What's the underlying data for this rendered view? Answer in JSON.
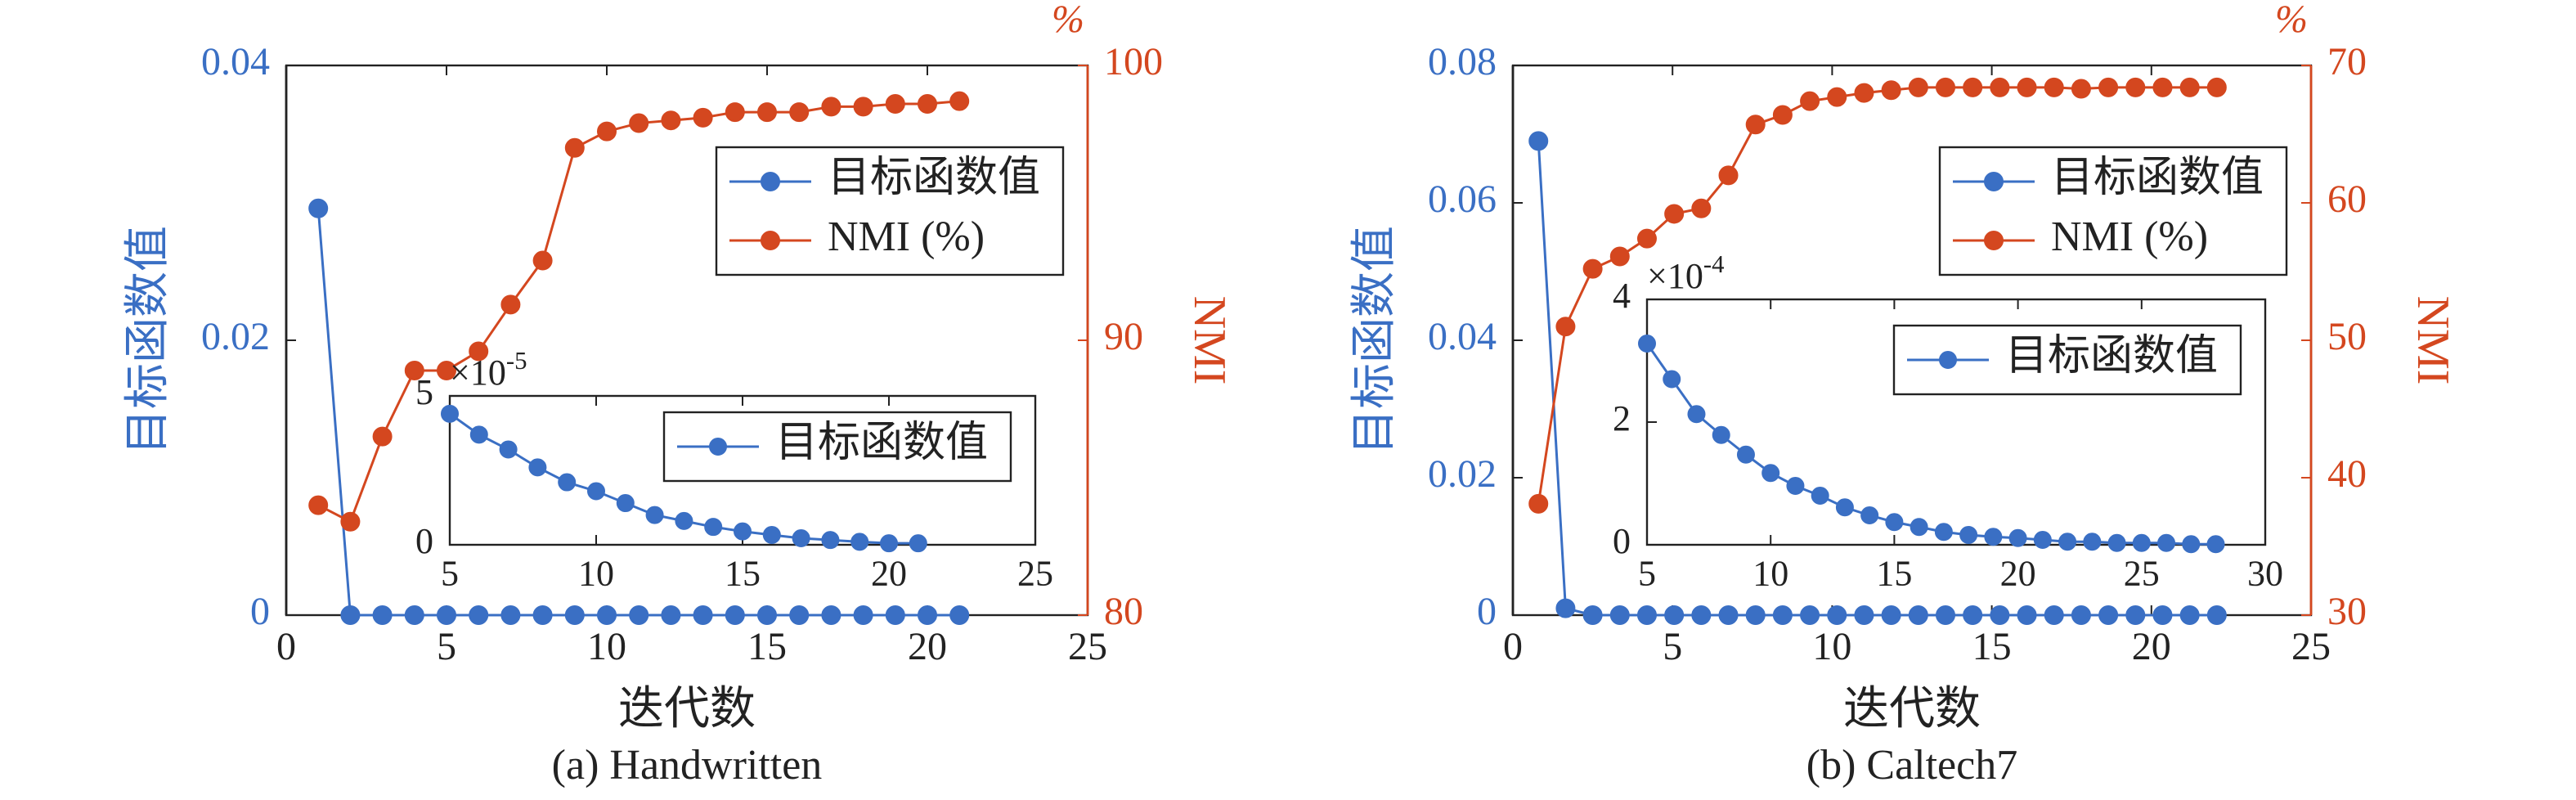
{
  "chart_data": [
    {
      "type": "line",
      "caption": "(a) Handwritten",
      "xlabel": "迭代数",
      "ylabel": "目标函数值",
      "y2label": "NMI",
      "y2unit": "%",
      "xlim": [
        0,
        25
      ],
      "xticks": [
        0,
        5,
        10,
        15,
        20,
        25
      ],
      "ylim": [
        0,
        0.04
      ],
      "yticks": [
        0,
        0.02,
        0.04
      ],
      "y2lim": [
        80,
        100
      ],
      "y2ticks": [
        80,
        90,
        100
      ],
      "legend": "upper right",
      "x": [
        1,
        2,
        3,
        4,
        5,
        6,
        7,
        8,
        9,
        10,
        11,
        12,
        13,
        14,
        15,
        16,
        17,
        18,
        19,
        20,
        21
      ],
      "series": [
        {
          "name": "目标函数值",
          "color": "#3a6fc4",
          "values": [
            0.0296,
            0,
            0,
            0,
            0,
            0,
            0,
            0,
            0,
            0,
            0,
            0,
            0,
            0,
            0,
            0,
            0,
            0,
            0,
            0,
            0
          ]
        },
        {
          "name": "NMI (%)",
          "color": "#d4471f",
          "axis": "y2",
          "values": [
            84.0,
            83.4,
            86.5,
            88.9,
            88.9,
            89.6,
            91.3,
            92.9,
            97.0,
            97.6,
            97.9,
            98.0,
            98.1,
            98.3,
            98.3,
            98.3,
            98.5,
            98.5,
            98.6,
            98.6,
            98.7
          ]
        }
      ],
      "inset": {
        "type": "line",
        "xlim": [
          5,
          25
        ],
        "xticks": [
          5,
          10,
          15,
          20,
          25
        ],
        "ylim": [
          0,
          5
        ],
        "yticks": [
          0,
          5
        ],
        "y_exponent": {
          "base": "×10",
          "power": "-5"
        },
        "legend": "upper right",
        "x": [
          5,
          6,
          7,
          8,
          9,
          10,
          11,
          12,
          13,
          14,
          15,
          16,
          17,
          18,
          19,
          20,
          21
        ],
        "series": [
          {
            "name": "目标函数值",
            "color": "#3a6fc4",
            "values": [
              4.4,
              3.7,
              3.2,
              2.6,
              2.1,
              1.8,
              1.4,
              1.0,
              0.8,
              0.6,
              0.45,
              0.33,
              0.22,
              0.16,
              0.1,
              0.05,
              0.05
            ]
          }
        ]
      }
    },
    {
      "type": "line",
      "caption": "(b) Caltech7",
      "xlabel": "迭代数",
      "ylabel": "目标函数值",
      "y2label": "NMI",
      "y2unit": "%",
      "xlim": [
        0,
        25
      ],
      "xticks": [
        0,
        5,
        10,
        15,
        20,
        25
      ],
      "ylim": [
        0,
        0.08
      ],
      "yticks": [
        0,
        0.02,
        0.04,
        0.06,
        0.08
      ],
      "y2lim": [
        30,
        70
      ],
      "y2ticks": [
        30,
        40,
        50,
        60,
        70
      ],
      "legend": "upper right",
      "x": [
        0.8,
        1.65,
        2.5,
        3.35,
        4.2,
        5.05,
        5.9,
        6.75,
        7.6,
        8.45,
        9.3,
        10.15,
        11.0,
        11.85,
        12.7,
        13.55,
        14.4,
        15.25,
        16.1,
        16.95,
        17.8,
        18.65,
        19.5,
        20.35,
        21.2,
        22.05
      ],
      "series": [
        {
          "name": "目标函数值",
          "color": "#3a6fc4",
          "values": [
            0.069,
            0.001,
            0,
            0,
            0,
            0,
            0,
            0,
            0,
            0,
            0,
            0,
            0,
            0,
            0,
            0,
            0,
            0,
            0,
            0,
            0,
            0,
            0,
            0,
            0,
            0
          ]
        },
        {
          "name": "NMI (%)",
          "color": "#d4471f",
          "axis": "y2",
          "values": [
            38.1,
            51.0,
            55.2,
            56.1,
            57.4,
            59.2,
            59.6,
            62.0,
            65.7,
            66.4,
            67.4,
            67.7,
            68.0,
            68.2,
            68.4,
            68.4,
            68.4,
            68.4,
            68.4,
            68.4,
            68.3,
            68.4,
            68.4,
            68.4,
            68.4,
            68.4
          ]
        }
      ],
      "inset": {
        "type": "line",
        "xlim": [
          5,
          30
        ],
        "xticks": [
          5,
          10,
          15,
          20,
          25,
          30
        ],
        "ylim": [
          0,
          4
        ],
        "yticks": [
          0,
          2,
          4
        ],
        "y_exponent": {
          "base": "×10",
          "power": "-4"
        },
        "legend": "upper right",
        "x": [
          5,
          6,
          7,
          8,
          9,
          10,
          11,
          12,
          13,
          14,
          15,
          16,
          17,
          18,
          19,
          20,
          21,
          22,
          23,
          24,
          25,
          26,
          27,
          28
        ],
        "series": [
          {
            "name": "目标函数值",
            "color": "#3a6fc4",
            "values": [
              3.28,
              2.7,
              2.13,
              1.79,
              1.47,
              1.17,
              0.96,
              0.8,
              0.61,
              0.48,
              0.37,
              0.29,
              0.21,
              0.16,
              0.13,
              0.11,
              0.08,
              0.05,
              0.05,
              0.03,
              0.03,
              0.03,
              0.01,
              0.01
            ]
          }
        ]
      }
    }
  ]
}
